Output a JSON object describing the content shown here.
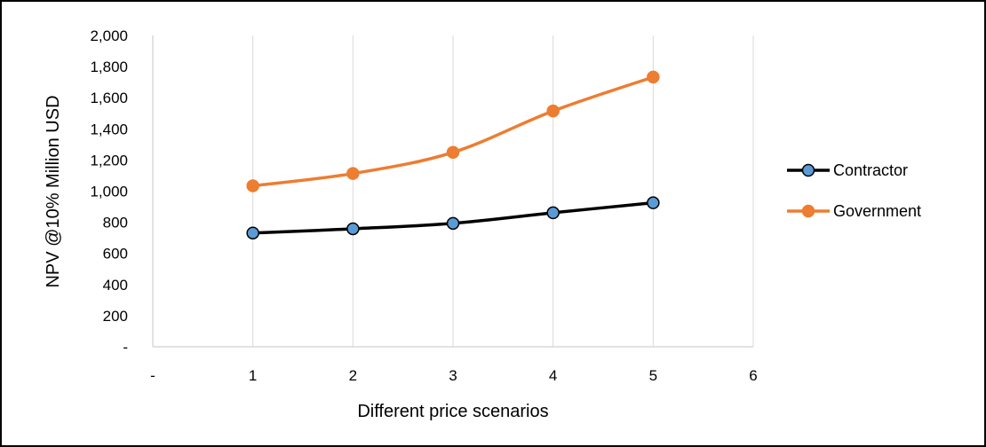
{
  "chart_data": {
    "type": "line",
    "title": "",
    "xlabel": "Different price scenarios",
    "ylabel": "NPV @10%  Million  USD",
    "xlim": [
      0,
      6
    ],
    "ylim": [
      0,
      2000
    ],
    "x_ticks": [
      {
        "value": 0,
        "label": "-"
      },
      {
        "value": 1,
        "label": "1"
      },
      {
        "value": 2,
        "label": "2"
      },
      {
        "value": 3,
        "label": "3"
      },
      {
        "value": 4,
        "label": "4"
      },
      {
        "value": 5,
        "label": "5"
      },
      {
        "value": 6,
        "label": "6"
      }
    ],
    "y_ticks": [
      {
        "value": 0,
        "label": "-"
      },
      {
        "value": 200,
        "label": "200"
      },
      {
        "value": 400,
        "label": "400"
      },
      {
        "value": 600,
        "label": "600"
      },
      {
        "value": 800,
        "label": "800"
      },
      {
        "value": 1000,
        "label": "1,000"
      },
      {
        "value": 1200,
        "label": "1,200"
      },
      {
        "value": 1400,
        "label": "1,400"
      },
      {
        "value": 1600,
        "label": "1,600"
      },
      {
        "value": 1800,
        "label": "1,800"
      },
      {
        "value": 2000,
        "label": "2,000"
      }
    ],
    "grid": "vertical gridlines only",
    "legend_position": "right",
    "smoothed": true,
    "series": [
      {
        "name": "Contractor",
        "line_color": "#000000",
        "marker_color": "#5B9BD5",
        "marker_edge_color": "#000000",
        "x": [
          1,
          2,
          3,
          4,
          5
        ],
        "values": [
          731,
          758,
          793,
          861,
          925
        ]
      },
      {
        "name": "Government",
        "line_color": "#ED7D31",
        "marker_color": "#ED7D31",
        "marker_edge_color": "#ED7D31",
        "x": [
          1,
          2,
          3,
          4,
          5
        ],
        "values": [
          1034,
          1113,
          1249,
          1515,
          1733
        ]
      }
    ],
    "colors": {
      "gridline": "#D9D9D9",
      "frame": "#000000"
    }
  }
}
